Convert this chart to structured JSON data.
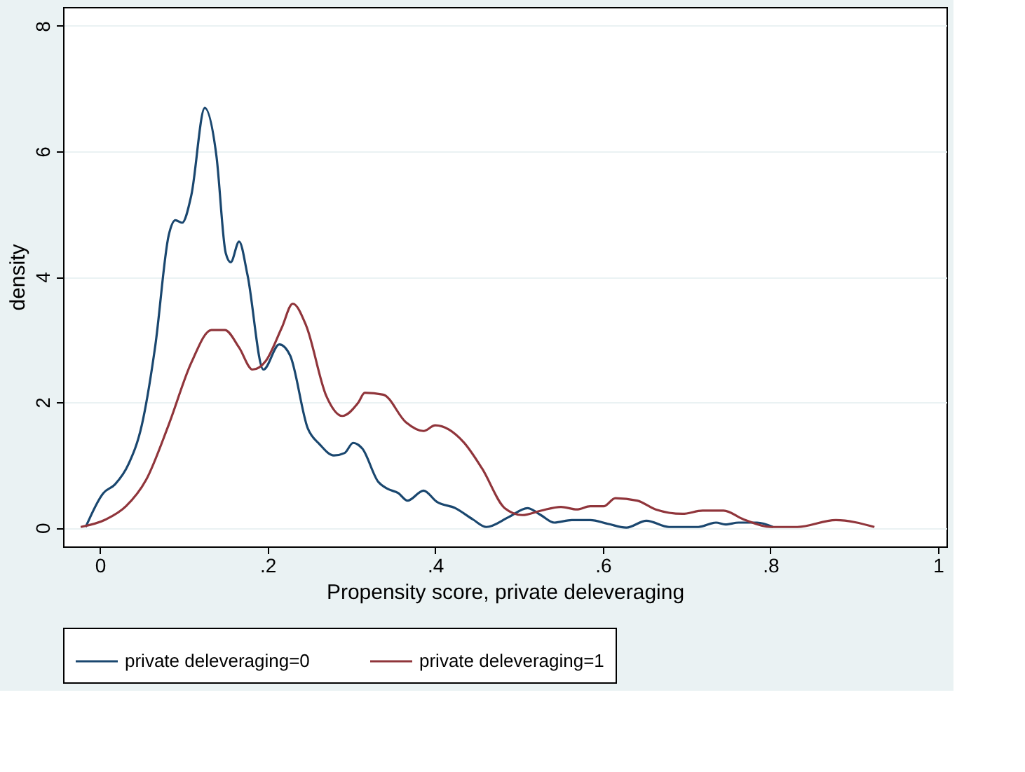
{
  "chart_data": {
    "type": "line",
    "xlabel": "Propensity score, private deleveraging",
    "ylabel": "density",
    "xlim": [
      -0.044,
      1.01
    ],
    "ylim": [
      -0.3,
      8.3
    ],
    "xticks": [
      0,
      {
        "value": 0.2,
        "label": ".2"
      },
      {
        "value": 0.4,
        "label": ".4"
      },
      {
        "value": 0.6,
        "label": ".6"
      },
      {
        "value": 0.8,
        "label": ".8"
      },
      1
    ],
    "yticks": [
      0,
      2,
      4,
      6,
      8
    ],
    "grid": "y",
    "legend": "bottom",
    "line_style": "solid",
    "marker": "none",
    "series": [
      {
        "name": "private deleveraging=0",
        "color": "#1a476f",
        "x": [
          -0.017,
          0.004,
          0.018,
          0.034,
          0.05,
          0.066,
          0.082,
          0.09,
          0.098,
          0.109,
          0.125,
          0.139,
          0.15,
          0.156,
          0.166,
          0.176,
          0.195,
          0.214,
          0.227,
          0.248,
          0.262,
          0.279,
          0.292,
          0.302,
          0.313,
          0.332,
          0.343,
          0.356,
          0.367,
          0.386,
          0.402,
          0.424,
          0.445,
          0.461,
          0.488,
          0.51,
          0.526,
          0.542,
          0.563,
          0.585,
          0.606,
          0.628,
          0.652,
          0.679,
          0.714,
          0.735,
          0.746,
          0.762,
          0.784,
          0.803
        ],
        "values": [
          0.01,
          0.55,
          0.69,
          1.01,
          1.64,
          2.9,
          4.66,
          4.9,
          4.86,
          5.3,
          6.69,
          5.92,
          4.38,
          4.23,
          4.56,
          4.03,
          2.52,
          2.92,
          2.74,
          1.58,
          1.33,
          1.15,
          1.19,
          1.35,
          1.26,
          0.73,
          0.62,
          0.55,
          0.43,
          0.59,
          0.41,
          0.31,
          0.13,
          0.01,
          0.17,
          0.31,
          0.2,
          0.08,
          0.12,
          0.12,
          0.06,
          0.0,
          0.11,
          0.01,
          0.01,
          0.08,
          0.05,
          0.08,
          0.08,
          0.01
        ]
      },
      {
        "name": "private deleveraging=1",
        "color": "#90353b",
        "x": [
          -0.023,
          0.007,
          0.031,
          0.055,
          0.082,
          0.109,
          0.133,
          0.149,
          0.166,
          0.182,
          0.198,
          0.217,
          0.23,
          0.246,
          0.27,
          0.289,
          0.308,
          0.316,
          0.338,
          0.365,
          0.386,
          0.4,
          0.434,
          0.456,
          0.483,
          0.504,
          0.526,
          0.55,
          0.569,
          0.585,
          0.601,
          0.615,
          0.641,
          0.663,
          0.695,
          0.719,
          0.744,
          0.768,
          0.8,
          0.832,
          0.878,
          0.924
        ],
        "values": [
          0.01,
          0.13,
          0.34,
          0.76,
          1.64,
          2.63,
          3.15,
          3.15,
          2.87,
          2.52,
          2.66,
          3.19,
          3.57,
          3.22,
          2.1,
          1.78,
          1.99,
          2.15,
          2.12,
          1.68,
          1.54,
          1.63,
          1.36,
          0.94,
          0.31,
          0.2,
          0.27,
          0.33,
          0.29,
          0.34,
          0.34,
          0.47,
          0.43,
          0.29,
          0.22,
          0.27,
          0.27,
          0.13,
          0.01,
          0.01,
          0.12,
          0.01
        ]
      }
    ]
  }
}
